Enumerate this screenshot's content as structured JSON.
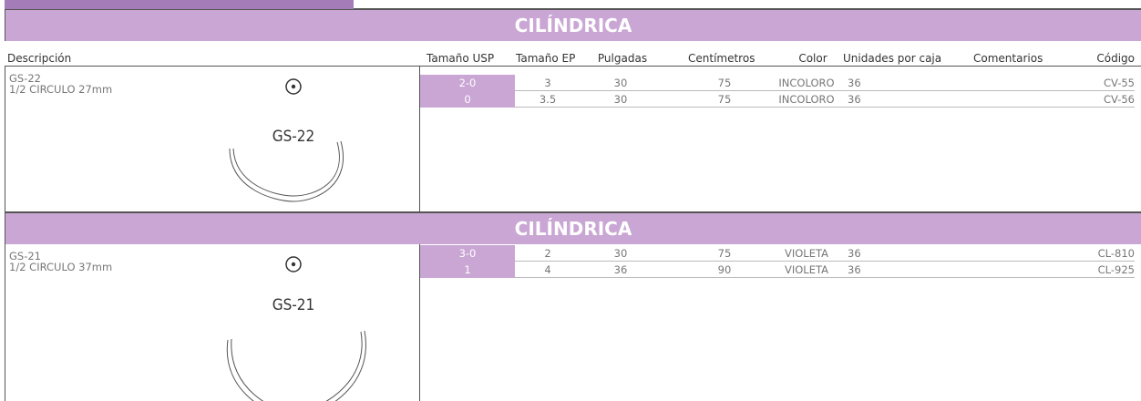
{
  "columns": [
    "Descripción",
    "Tamaño USP",
    "Tamaño EP",
    "Pulgadas",
    "Centímetros",
    "Color",
    "Unidades por caja",
    "Comentarios",
    "Código"
  ],
  "sections": [
    {
      "title": "CILÍNDRICA",
      "product": {
        "code": "GS-22",
        "description": "1/2 CIRCULO 27mm",
        "image_label": "GS-22"
      },
      "rows": [
        [
          "2-0",
          "3",
          "30",
          "75",
          "INCOLORO",
          "36",
          "",
          "CV-55"
        ],
        [
          "0",
          "3.5",
          "30",
          "75",
          "INCOLORO",
          "36",
          "",
          "CV-56"
        ]
      ]
    },
    {
      "title": "CILÍNDRICA",
      "product": {
        "code": "GS-21",
        "description": "1/2 CIRCULO 37mm",
        "image_label": "GS-21"
      },
      "rows": [
        [
          "3-0",
          "2",
          "30",
          "75",
          "VIOLETA",
          "36",
          "",
          "CL-810"
        ],
        [
          "1",
          "4",
          "36",
          "90",
          "VIOLETA",
          "36",
          "",
          "CL-925"
        ]
      ]
    }
  ]
}
